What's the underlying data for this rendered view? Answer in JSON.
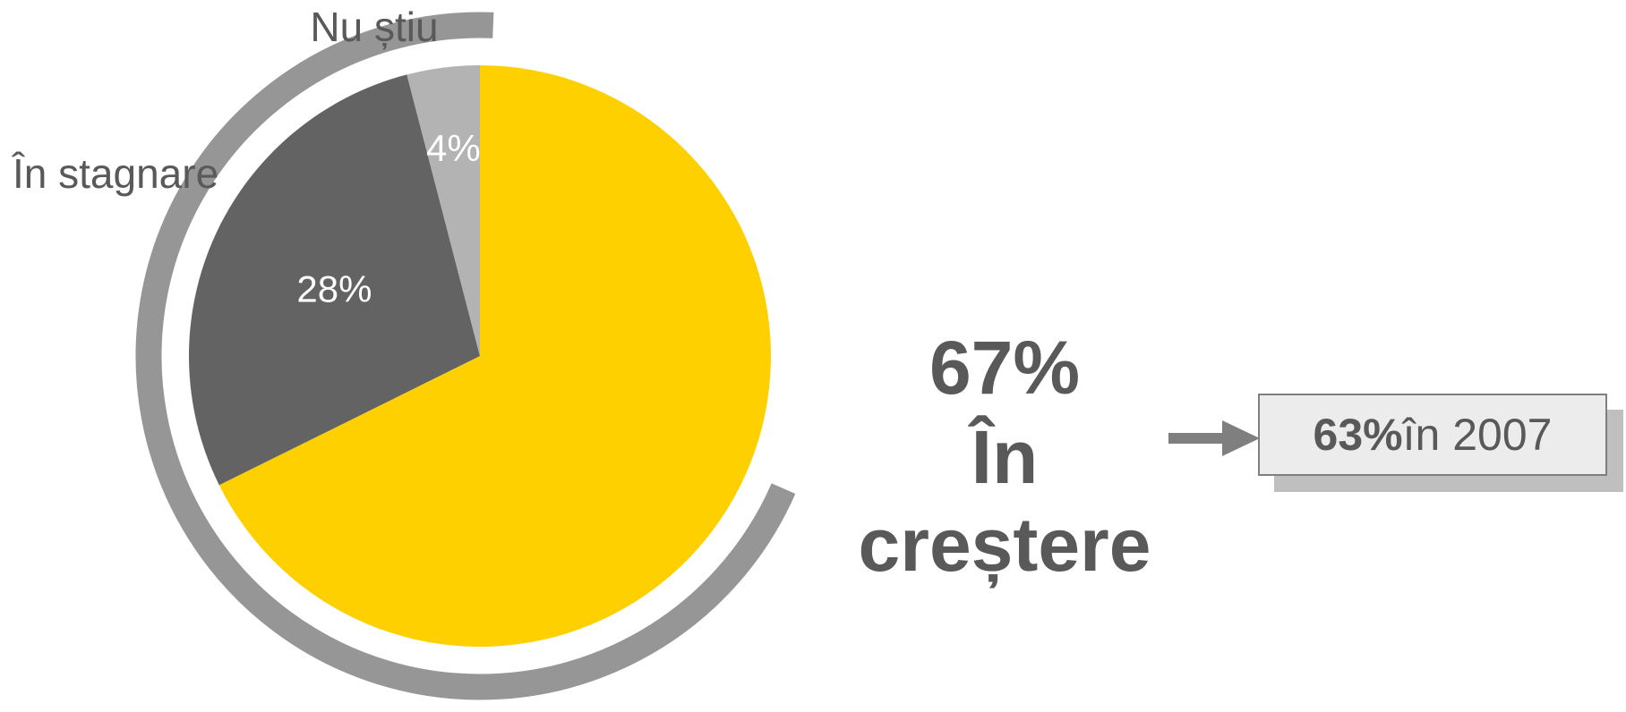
{
  "chart_data": {
    "type": "pie",
    "title": "",
    "slices": [
      {
        "label": "În creștere",
        "value": 67,
        "display": "67%",
        "color": "#ffd000"
      },
      {
        "label": "În stagnare",
        "value": 28,
        "display": "28%",
        "color": "#636363"
      },
      {
        "label": "Nu știu",
        "value": 4,
        "display": "4%",
        "color": "#b3b3b3"
      }
    ],
    "main_callout": {
      "line1": "67%",
      "line2": "În",
      "line3": "creștere"
    },
    "outer_arc_color": "#969696",
    "legend": "none"
  },
  "comparison": {
    "prefix": "63%",
    "suffix": " în 2007"
  },
  "colors": {
    "text_dark": "#595959",
    "text_light": "#ffffff",
    "arrow": "#7f7f7f"
  }
}
